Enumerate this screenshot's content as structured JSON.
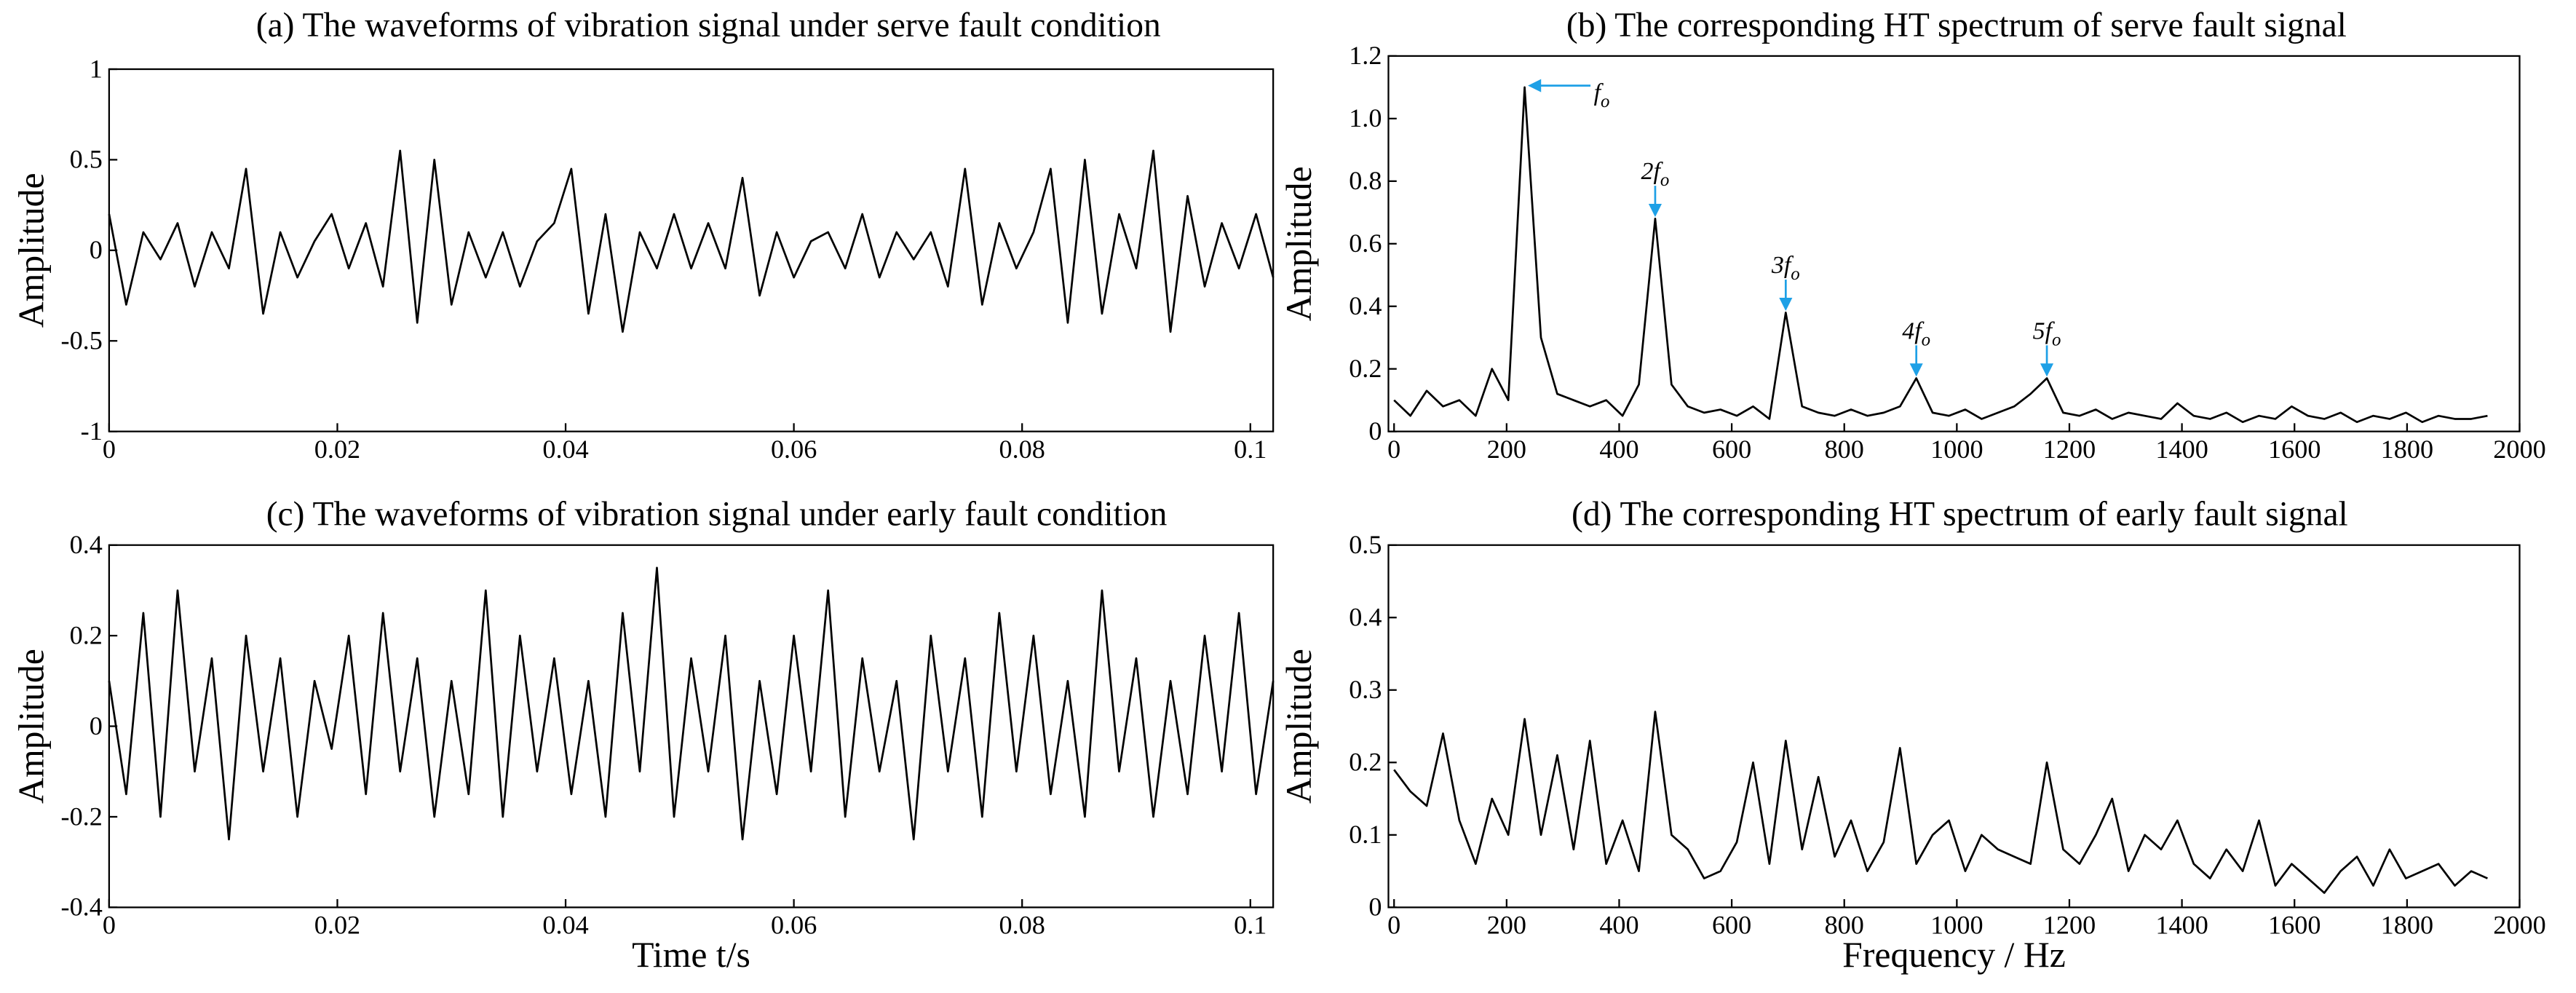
{
  "chart_data": [
    {
      "type": "line",
      "title": "(a)  The waveforms of vibration signal under serve fault condition",
      "ylabel": "Amplitude",
      "x": [
        0,
        0.0015,
        0.003,
        0.0045,
        0.006,
        0.0075,
        0.009,
        0.0105,
        0.012,
        0.0135,
        0.015,
        0.0165,
        0.018,
        0.0195,
        0.021,
        0.0225,
        0.024,
        0.0255,
        0.027,
        0.0285,
        0.03,
        0.0315,
        0.033,
        0.0345,
        0.036,
        0.0375,
        0.039,
        0.0405,
        0.042,
        0.0435,
        0.045,
        0.0465,
        0.048,
        0.0495,
        0.051,
        0.0525,
        0.054,
        0.0555,
        0.057,
        0.0585,
        0.06,
        0.0615,
        0.063,
        0.0645,
        0.066,
        0.0675,
        0.069,
        0.0705,
        0.072,
        0.0735,
        0.075,
        0.0765,
        0.078,
        0.0795,
        0.081,
        0.0825,
        0.084,
        0.0855,
        0.087,
        0.0885,
        0.09,
        0.0915,
        0.093,
        0.0945,
        0.096,
        0.0975,
        0.099,
        0.1005,
        0.102
      ],
      "series": [
        {
          "color": "#000000",
          "values": [
            0.2,
            -0.3,
            0.1,
            -0.05,
            0.15,
            -0.2,
            0.1,
            -0.1,
            0.45,
            -0.35,
            0.1,
            -0.15,
            0.05,
            0.2,
            -0.1,
            0.15,
            -0.2,
            0.55,
            -0.4,
            0.5,
            -0.3,
            0.1,
            -0.15,
            0.1,
            -0.2,
            0.05,
            0.15,
            0.45,
            -0.35,
            0.2,
            -0.45,
            0.1,
            -0.1,
            0.2,
            -0.1,
            0.15,
            -0.1,
            0.4,
            -0.25,
            0.1,
            -0.15,
            0.05,
            0.1,
            -0.1,
            0.2,
            -0.15,
            0.1,
            -0.05,
            0.1,
            -0.2,
            0.45,
            -0.3,
            0.15,
            -0.1,
            0.1,
            0.45,
            -0.4,
            0.5,
            -0.35,
            0.2,
            -0.1,
            0.55,
            -0.45,
            0.3,
            -0.2,
            0.15,
            -0.1,
            0.2,
            -0.15
          ]
        }
      ],
      "xlim": [
        0,
        0.102
      ],
      "xticks": [
        0,
        0.02,
        0.04,
        0.06,
        0.08,
        0.1
      ],
      "ylim": [
        -1,
        1
      ],
      "yticks": [
        -1,
        -0.5,
        0,
        0.5,
        1
      ]
    },
    {
      "type": "line",
      "title": "(b)   The corresponding HT spectrum of serve fault signal",
      "ylabel": "Amplitude",
      "x": [
        0,
        29,
        58,
        87,
        116,
        145,
        174,
        203,
        232,
        261,
        290,
        319,
        348,
        377,
        406,
        435,
        464,
        493,
        522,
        551,
        580,
        609,
        638,
        667,
        696,
        725,
        754,
        783,
        812,
        841,
        870,
        899,
        928,
        957,
        986,
        1015,
        1044,
        1073,
        1102,
        1131,
        1160,
        1189,
        1218,
        1247,
        1276,
        1305,
        1334,
        1363,
        1392,
        1421,
        1450,
        1479,
        1508,
        1537,
        1566,
        1595,
        1624,
        1653,
        1682,
        1711,
        1740,
        1769,
        1798,
        1827,
        1856,
        1885,
        1914,
        1943
      ],
      "series": [
        {
          "color": "#000000",
          "values": [
            0.1,
            0.05,
            0.13,
            0.08,
            0.1,
            0.05,
            0.2,
            0.1,
            1.1,
            0.3,
            0.12,
            0.1,
            0.08,
            0.1,
            0.05,
            0.15,
            0.68,
            0.15,
            0.08,
            0.06,
            0.07,
            0.05,
            0.08,
            0.04,
            0.38,
            0.08,
            0.06,
            0.05,
            0.07,
            0.05,
            0.06,
            0.08,
            0.17,
            0.06,
            0.05,
            0.07,
            0.04,
            0.06,
            0.08,
            0.12,
            0.17,
            0.06,
            0.05,
            0.07,
            0.04,
            0.06,
            0.05,
            0.04,
            0.09,
            0.05,
            0.04,
            0.06,
            0.03,
            0.05,
            0.04,
            0.08,
            0.05,
            0.04,
            0.06,
            0.03,
            0.05,
            0.04,
            0.06,
            0.03,
            0.05,
            0.04,
            0.04,
            0.05
          ]
        }
      ],
      "xlim": [
        -10,
        2000
      ],
      "xticks": [
        0,
        200,
        400,
        600,
        800,
        1000,
        1200,
        1400,
        1600,
        1800,
        2000
      ],
      "ylim": [
        0,
        1.2
      ],
      "yticks": [
        0,
        0.2,
        0.4,
        0.6,
        0.8,
        {
          "value": 1,
          "label": "1.0"
        },
        1.2
      ],
      "annotations": [
        {
          "text": "f",
          "sub": "o",
          "x": 232,
          "y": 1.1,
          "arrow_color": "#1ea0e6"
        },
        {
          "text": "2f",
          "sub": "o",
          "x": 464,
          "y": 0.68,
          "arrow_color": "#1ea0e6"
        },
        {
          "text": "3f",
          "sub": "o",
          "x": 696,
          "y": 0.38,
          "arrow_color": "#1ea0e6"
        },
        {
          "text": "4f",
          "sub": "o",
          "x": 928,
          "y": 0.17,
          "arrow_color": "#1ea0e6"
        },
        {
          "text": "5f",
          "sub": "o",
          "x": 1160,
          "y": 0.17,
          "arrow_color": "#1ea0e6"
        }
      ]
    },
    {
      "type": "line",
      "title": "(c)  The waveforms of vibration signal under early fault condition",
      "ylabel": "Amplitude",
      "xlabel": "Time t/s",
      "x": [
        0,
        0.0015,
        0.003,
        0.0045,
        0.006,
        0.0075,
        0.009,
        0.0105,
        0.012,
        0.0135,
        0.015,
        0.0165,
        0.018,
        0.0195,
        0.021,
        0.0225,
        0.024,
        0.0255,
        0.027,
        0.0285,
        0.03,
        0.0315,
        0.033,
        0.0345,
        0.036,
        0.0375,
        0.039,
        0.0405,
        0.042,
        0.0435,
        0.045,
        0.0465,
        0.048,
        0.0495,
        0.051,
        0.0525,
        0.054,
        0.0555,
        0.057,
        0.0585,
        0.06,
        0.0615,
        0.063,
        0.0645,
        0.066,
        0.0675,
        0.069,
        0.0705,
        0.072,
        0.0735,
        0.075,
        0.0765,
        0.078,
        0.0795,
        0.081,
        0.0825,
        0.084,
        0.0855,
        0.087,
        0.0885,
        0.09,
        0.0915,
        0.093,
        0.0945,
        0.096,
        0.0975,
        0.099,
        0.1005,
        0.102
      ],
      "series": [
        {
          "color": "#000000",
          "values": [
            0.1,
            -0.15,
            0.25,
            -0.2,
            0.3,
            -0.1,
            0.15,
            -0.25,
            0.2,
            -0.1,
            0.15,
            -0.2,
            0.1,
            -0.05,
            0.2,
            -0.15,
            0.25,
            -0.1,
            0.15,
            -0.2,
            0.1,
            -0.15,
            0.3,
            -0.2,
            0.2,
            -0.1,
            0.15,
            -0.15,
            0.1,
            -0.2,
            0.25,
            -0.1,
            0.35,
            -0.2,
            0.15,
            -0.1,
            0.2,
            -0.25,
            0.1,
            -0.15,
            0.2,
            -0.1,
            0.3,
            -0.2,
            0.15,
            -0.1,
            0.1,
            -0.25,
            0.2,
            -0.1,
            0.15,
            -0.2,
            0.25,
            -0.1,
            0.2,
            -0.15,
            0.1,
            -0.2,
            0.3,
            -0.1,
            0.15,
            -0.2,
            0.1,
            -0.15,
            0.2,
            -0.1,
            0.25,
            -0.15,
            0.1
          ]
        }
      ],
      "xlim": [
        0,
        0.102
      ],
      "xticks": [
        0,
        0.02,
        0.04,
        0.06,
        0.08,
        0.1
      ],
      "ylim": [
        -0.4,
        0.4
      ],
      "yticks": [
        -0.4,
        -0.2,
        0,
        0.2,
        0.4
      ]
    },
    {
      "type": "line",
      "title": "(d)  The corresponding HT spectrum of early fault signal",
      "ylabel": "Amplitude",
      "xlabel": "Frequency / Hz",
      "x": [
        0,
        29,
        58,
        87,
        116,
        145,
        174,
        203,
        232,
        261,
        290,
        319,
        348,
        377,
        406,
        435,
        464,
        493,
        522,
        551,
        580,
        609,
        638,
        667,
        696,
        725,
        754,
        783,
        812,
        841,
        870,
        899,
        928,
        957,
        986,
        1015,
        1044,
        1073,
        1102,
        1131,
        1160,
        1189,
        1218,
        1247,
        1276,
        1305,
        1334,
        1363,
        1392,
        1421,
        1450,
        1479,
        1508,
        1537,
        1566,
        1595,
        1624,
        1653,
        1682,
        1711,
        1740,
        1769,
        1798,
        1827,
        1856,
        1885,
        1914,
        1943
      ],
      "series": [
        {
          "color": "#000000",
          "values": [
            0.19,
            0.16,
            0.14,
            0.24,
            0.12,
            0.06,
            0.15,
            0.1,
            0.26,
            0.1,
            0.21,
            0.08,
            0.23,
            0.06,
            0.12,
            0.05,
            0.27,
            0.1,
            0.08,
            0.04,
            0.05,
            0.09,
            0.2,
            0.06,
            0.23,
            0.08,
            0.18,
            0.07,
            0.12,
            0.05,
            0.09,
            0.22,
            0.06,
            0.1,
            0.12,
            0.05,
            0.1,
            0.08,
            0.07,
            0.06,
            0.2,
            0.08,
            0.06,
            0.1,
            0.15,
            0.05,
            0.1,
            0.08,
            0.12,
            0.06,
            0.04,
            0.08,
            0.05,
            0.12,
            0.03,
            0.06,
            0.04,
            0.02,
            0.05,
            0.07,
            0.03,
            0.08,
            0.04,
            0.05,
            0.06,
            0.03,
            0.05,
            0.04
          ]
        }
      ],
      "xlim": [
        -10,
        2000
      ],
      "xticks": [
        0,
        200,
        400,
        600,
        800,
        1000,
        1200,
        1400,
        1600,
        1800,
        2000
      ],
      "ylim": [
        0,
        0.5
      ],
      "yticks": [
        0,
        0.1,
        0.2,
        0.3,
        0.4,
        0.5
      ]
    }
  ]
}
